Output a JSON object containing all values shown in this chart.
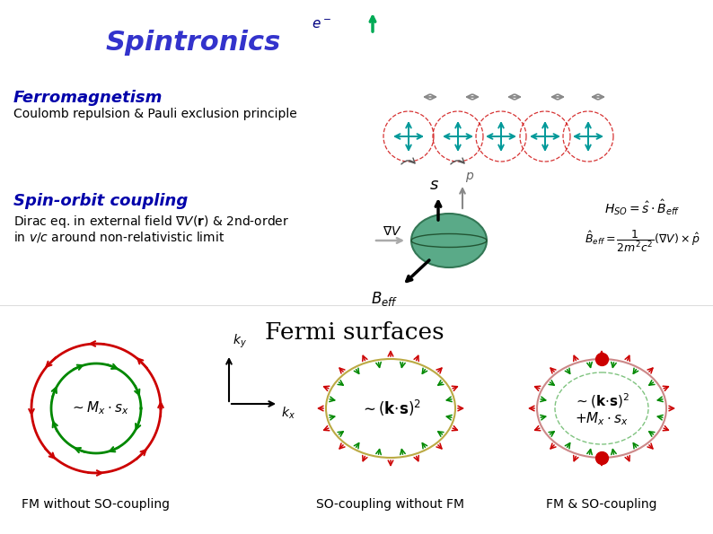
{
  "bg_color": "#ffffff",
  "title_spintronics": "Spintronics",
  "title_color": "#3333cc",
  "ferromagnetism_title": "Ferromagnetism",
  "ferromagnetism_sub": "Coulomb repulsion & Pauli exclusion principle",
  "spinorbit_title": "Spin-orbit coupling",
  "fermi_title": "Fermi surfaces",
  "fm_label": "FM without SO-coupling",
  "so_label": "SO-coupling without FM",
  "fmso_label": "FM & SO-coupling",
  "red_color": "#cc0000",
  "green_color": "#008800",
  "teal_color": "#009999",
  "gray_color": "#888888",
  "blue_label_color": "#0000aa"
}
